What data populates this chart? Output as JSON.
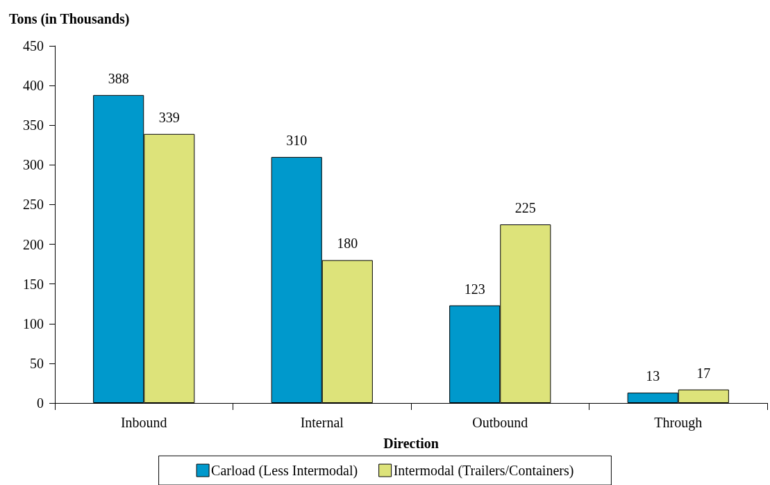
{
  "chart_data": {
    "type": "bar",
    "ylabel": "Tons (in Thousands)",
    "xlabel": "Direction",
    "categories": [
      "Inbound",
      "Internal",
      "Outbound",
      "Through"
    ],
    "series": [
      {
        "name": "Carload (Less Intermodal)",
        "color": "#0099cc",
        "values": [
          388,
          310,
          123,
          13
        ]
      },
      {
        "name": "Intermodal (Trailers/Containers)",
        "color": "#dde37a",
        "values": [
          339,
          180,
          225,
          17
        ]
      }
    ],
    "ylim": [
      0,
      450
    ],
    "yticks": [
      0,
      50,
      100,
      150,
      200,
      250,
      300,
      350,
      400,
      450
    ],
    "data_labels": true,
    "legend": "bottom",
    "grid": false
  }
}
